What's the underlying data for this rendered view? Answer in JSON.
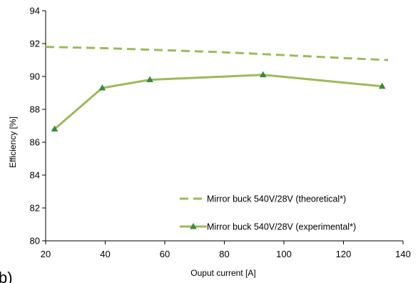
{
  "chart_data": {
    "type": "line",
    "panel_label": "b)",
    "title": "",
    "xlabel": "Ouput current [A]",
    "ylabel": "Efficiency [%]",
    "xlim": [
      20,
      140
    ],
    "ylim": [
      80,
      94
    ],
    "xticks": [
      20,
      40,
      60,
      80,
      100,
      120,
      140
    ],
    "yticks": [
      80,
      82,
      84,
      86,
      88,
      90,
      92,
      94
    ],
    "grid": false,
    "legend_position": "bottom-right",
    "series": [
      {
        "name": "Mirror buck 540V/28V (theoretical*)",
        "style": "dashed",
        "marker": "none",
        "color": "#9bbb59",
        "x": [
          20,
          40,
          60,
          80,
          100,
          120,
          135
        ],
        "y": [
          91.8,
          91.72,
          91.6,
          91.47,
          91.3,
          91.12,
          91.0
        ]
      },
      {
        "name": "Mirror buck 540V/28V (experimental*)",
        "style": "solid",
        "marker": "triangle",
        "color": "#9bbb59",
        "marker_color": "#3a8a3a",
        "x": [
          23,
          39,
          55,
          93,
          133
        ],
        "y": [
          86.8,
          89.3,
          89.8,
          90.1,
          89.4
        ]
      }
    ]
  }
}
